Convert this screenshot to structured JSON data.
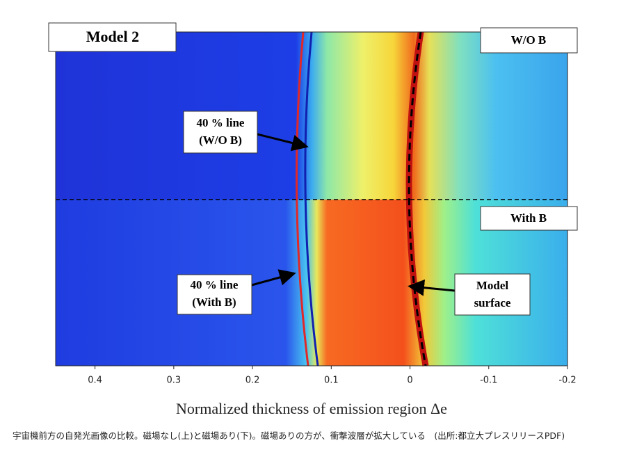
{
  "chart_data": {
    "type": "emission-image",
    "xlabel": "Normalized thickness of emission region Δe",
    "xlim": [
      0.45,
      -0.2
    ],
    "xticks": [
      0.4,
      0.3,
      0.2,
      0.1,
      0,
      -0.1,
      -0.2
    ],
    "annotations": {
      "model": "Model 2",
      "top_label": "W/O B",
      "bottom_label": "With B",
      "line_top_1": "40 % line",
      "line_top_2": "(W/O B)",
      "line_bottom_1": "40 % line",
      "line_bottom_2": "(With B)",
      "surface_1": "Model",
      "surface_2": "surface"
    }
  },
  "caption": "宇宙機前方の自発光画像の比較。磁場なし(上)と磁場あり(下)。磁場ありの方が、衝撃波層が拡大している　(出所:都立大プレスリリースPDF)"
}
